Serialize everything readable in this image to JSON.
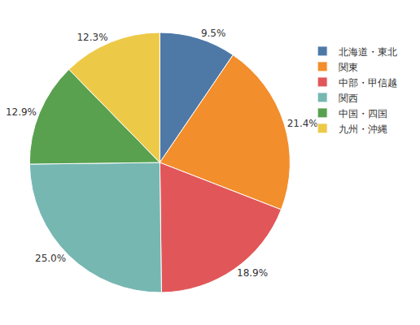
{
  "chart_data": {
    "type": "pie",
    "categories": [
      "北海道・東北",
      "関東",
      "中部・甲信越",
      "関西",
      "中国・四国",
      "九州・沖縄"
    ],
    "values": [
      9.5,
      21.4,
      18.9,
      25.0,
      12.9,
      12.3
    ],
    "value_labels": [
      "9.5%",
      "21.4%",
      "18.9%",
      "25.0%",
      "12.9%",
      "12.3%"
    ],
    "colors": [
      "#4e79a7",
      "#f28e2b",
      "#e15759",
      "#76b7b2",
      "#59a14f",
      "#edc948"
    ],
    "data_labels": true,
    "legend": "right"
  }
}
